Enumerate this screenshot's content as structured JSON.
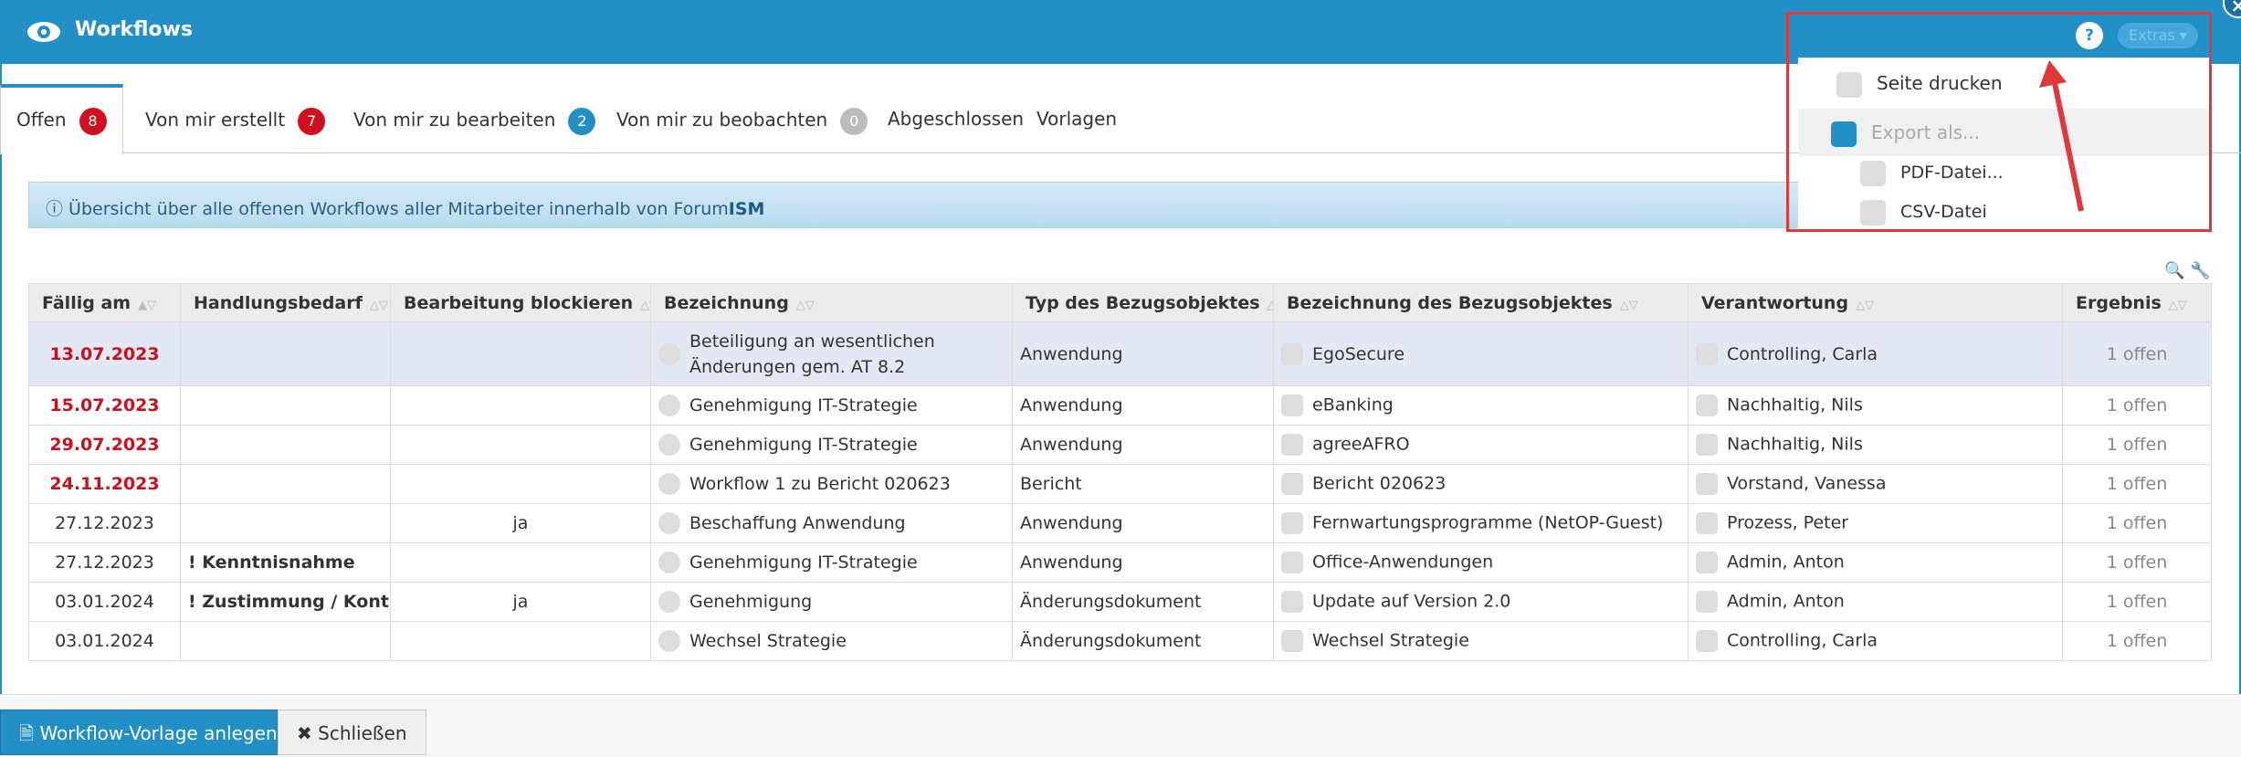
{
  "window": {
    "title": "Workflows"
  },
  "tabs": [
    {
      "label": "Offen",
      "count": 8,
      "badge": "red"
    },
    {
      "label": "Von mir erstellt",
      "count": 7,
      "badge": "red"
    },
    {
      "label": "Von mir zu bearbeiten",
      "count": 2,
      "badge": "blue"
    },
    {
      "label": "Von mir zu beobachten",
      "count": 0,
      "badge": "gray"
    },
    {
      "label": "Abgeschlossen"
    },
    {
      "label": "Vorlagen"
    }
  ],
  "info": {
    "text": "Übersicht über alle offenen Workflows aller Mitarbeiter innerhalb von Forum",
    "brand": "ISM"
  },
  "table": {
    "columns": [
      "Fällig am",
      "Handlungsbedarf",
      "Bearbeitung blockieren",
      "Bezeichnung",
      "Typ des Bezugsobjektes",
      "Bezeichnung des Bezugsobjektes",
      "Verantwortung",
      "Ergebnis"
    ],
    "rows": [
      {
        "overdue": true,
        "cells": [
          "13.07.2023",
          null,
          null,
          "Beteiligung an wesentlichen Änderungen gem. AT 8.2",
          "Anwendung",
          "EgoSecure",
          "Controlling, Carla",
          "1 offen"
        ]
      },
      {
        "overdue": true,
        "cells": [
          "15.07.2023",
          null,
          null,
          "Genehmigung IT-Strategie",
          "Anwendung",
          "eBanking",
          "Nachhaltig, Nils",
          "1 offen"
        ]
      },
      {
        "overdue": true,
        "cells": [
          "29.07.2023",
          null,
          null,
          "Genehmigung IT-Strategie",
          "Anwendung",
          "agreeAFRO",
          "Nachhaltig, Nils",
          "1 offen"
        ]
      },
      {
        "overdue": true,
        "cells": [
          "24.11.2023",
          null,
          null,
          "Workflow 1 zu Bericht 020623",
          "Bericht",
          "Bericht 020623",
          "Vorstand, Vanessa",
          "1 offen"
        ]
      },
      {
        "overdue": false,
        "cells": [
          "27.12.2023",
          null,
          "ja",
          "Beschaffung Anwendung",
          "Anwendung",
          "Fernwartungsprogramme (NetOP-Guest)",
          "Prozess, Peter",
          "1 offen"
        ]
      },
      {
        "overdue": false,
        "cells": [
          "27.12.2023",
          "! Kenntnisnahme",
          null,
          "Genehmigung IT-Strategie",
          "Anwendung",
          "Office-Anwendungen",
          "Admin, Anton",
          "1 offen"
        ]
      },
      {
        "overdue": false,
        "cells": [
          "03.01.2024",
          "! Zustimmung / Kontrolle",
          "ja",
          "Genehmigung",
          "Änderungsdokument",
          "Update auf Version 2.0",
          "Admin, Anton",
          "1 offen"
        ]
      },
      {
        "overdue": false,
        "cells": [
          "03.01.2024",
          null,
          null,
          "Wechsel Strategie",
          "Änderungsdokument",
          "Wechsel Strategie",
          "Controlling, Carla",
          "1 offen"
        ]
      }
    ]
  },
  "extras": {
    "help": "?",
    "button": "Extras",
    "menu": [
      "Seite drucken",
      "Export als...",
      "PDF-Datei...",
      "CSV-Datei"
    ]
  },
  "footer": {
    "primary": "Workflow-Vorlage anlegen",
    "secondary": "Schließen"
  }
}
